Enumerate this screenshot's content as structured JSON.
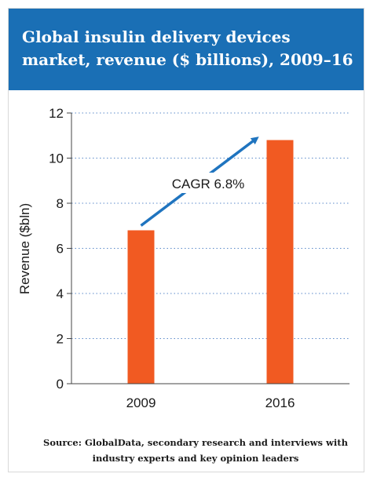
{
  "header": {
    "title": "Global insulin delivery devices market, revenue ($ billions), 2009–16"
  },
  "chart_data": {
    "type": "bar",
    "title": "Global insulin delivery devices market, revenue ($ billions), 2009–16",
    "xlabel": "",
    "ylabel": "Revenue ($bln)",
    "categories": [
      "2009",
      "2016"
    ],
    "values": [
      6.8,
      10.8
    ],
    "ylim": [
      0,
      12
    ],
    "yticks": [
      "0",
      "2",
      "4",
      "6",
      "8",
      "10",
      "12"
    ],
    "grid": true,
    "bar_color": "#f15a22",
    "annotation": {
      "text": "CAGR 6.8%",
      "arrow_color": "#1f74bf"
    }
  },
  "source": {
    "text": "Source: GlobalData, secondary research and interviews with industry experts and key opinion leaders"
  },
  "colors": {
    "header_bg": "#1a6fb5",
    "bar": "#f15a22",
    "arrow": "#1f74bf",
    "grid": "#5b8ac9"
  }
}
